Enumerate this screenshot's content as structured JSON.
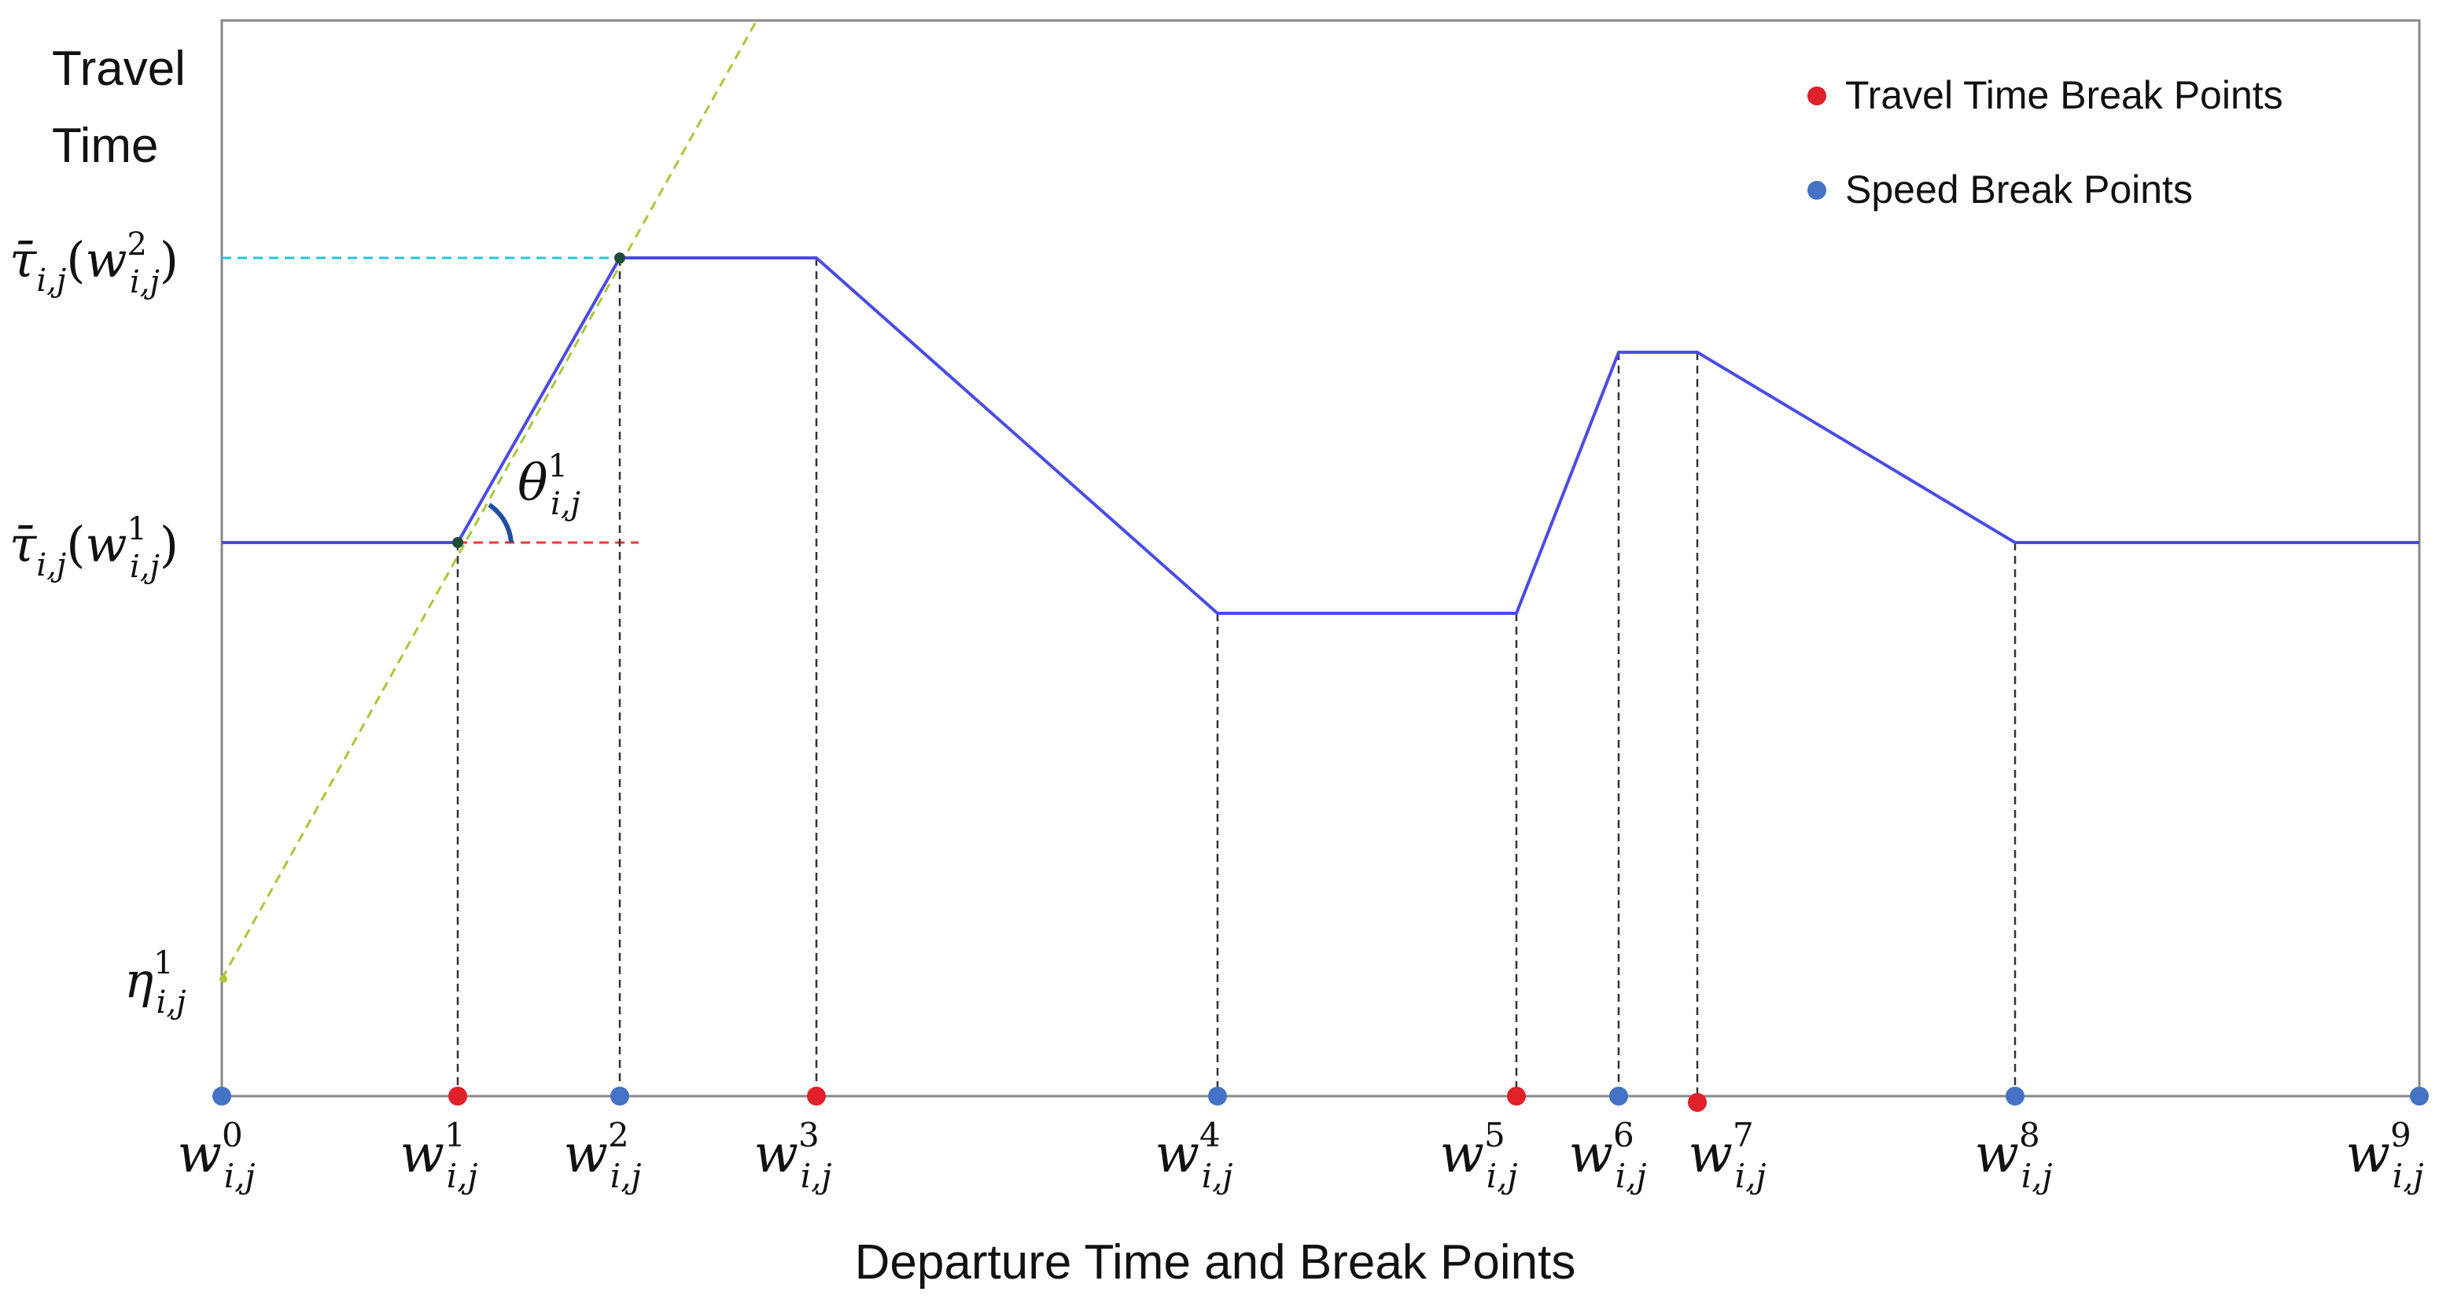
{
  "y_axis_title": [
    "Travel",
    "Time"
  ],
  "x_axis_title": "Departure Time and Break Points",
  "legend": {
    "travel_time": "Travel Time Break Points",
    "speed": "Speed Break Points"
  },
  "colors": {
    "travel_time_break_point": "#e0202a",
    "speed_break_point": "#4472c4",
    "travel_time_function": "#4b4be6",
    "slope_line": "#a8c83a",
    "tau2_guide": "#29c4d0",
    "tau1_guide": "#f03a3a"
  },
  "y_labels": {
    "tau2": "τ̄i,j(w2i,j)",
    "tau1": "τ̄i,j(w1i,j)",
    "eta": "η1i,j"
  },
  "angle_label": "θ1i,j",
  "x_breakpoints": [
    {
      "label": "w0i,j",
      "kind": "speed"
    },
    {
      "label": "w1i,j",
      "kind": "travel_time"
    },
    {
      "label": "w2i,j",
      "kind": "speed"
    },
    {
      "label": "w3i,j",
      "kind": "travel_time"
    },
    {
      "label": "w4i,j",
      "kind": "speed"
    },
    {
      "label": "w5i,j",
      "kind": "travel_time"
    },
    {
      "label": "w6i,j",
      "kind": "speed"
    },
    {
      "label": "w7i,j",
      "kind": "travel_time"
    },
    {
      "label": "w8i,j",
      "kind": "speed"
    },
    {
      "label": "w9i,j",
      "kind": "speed"
    }
  ]
}
